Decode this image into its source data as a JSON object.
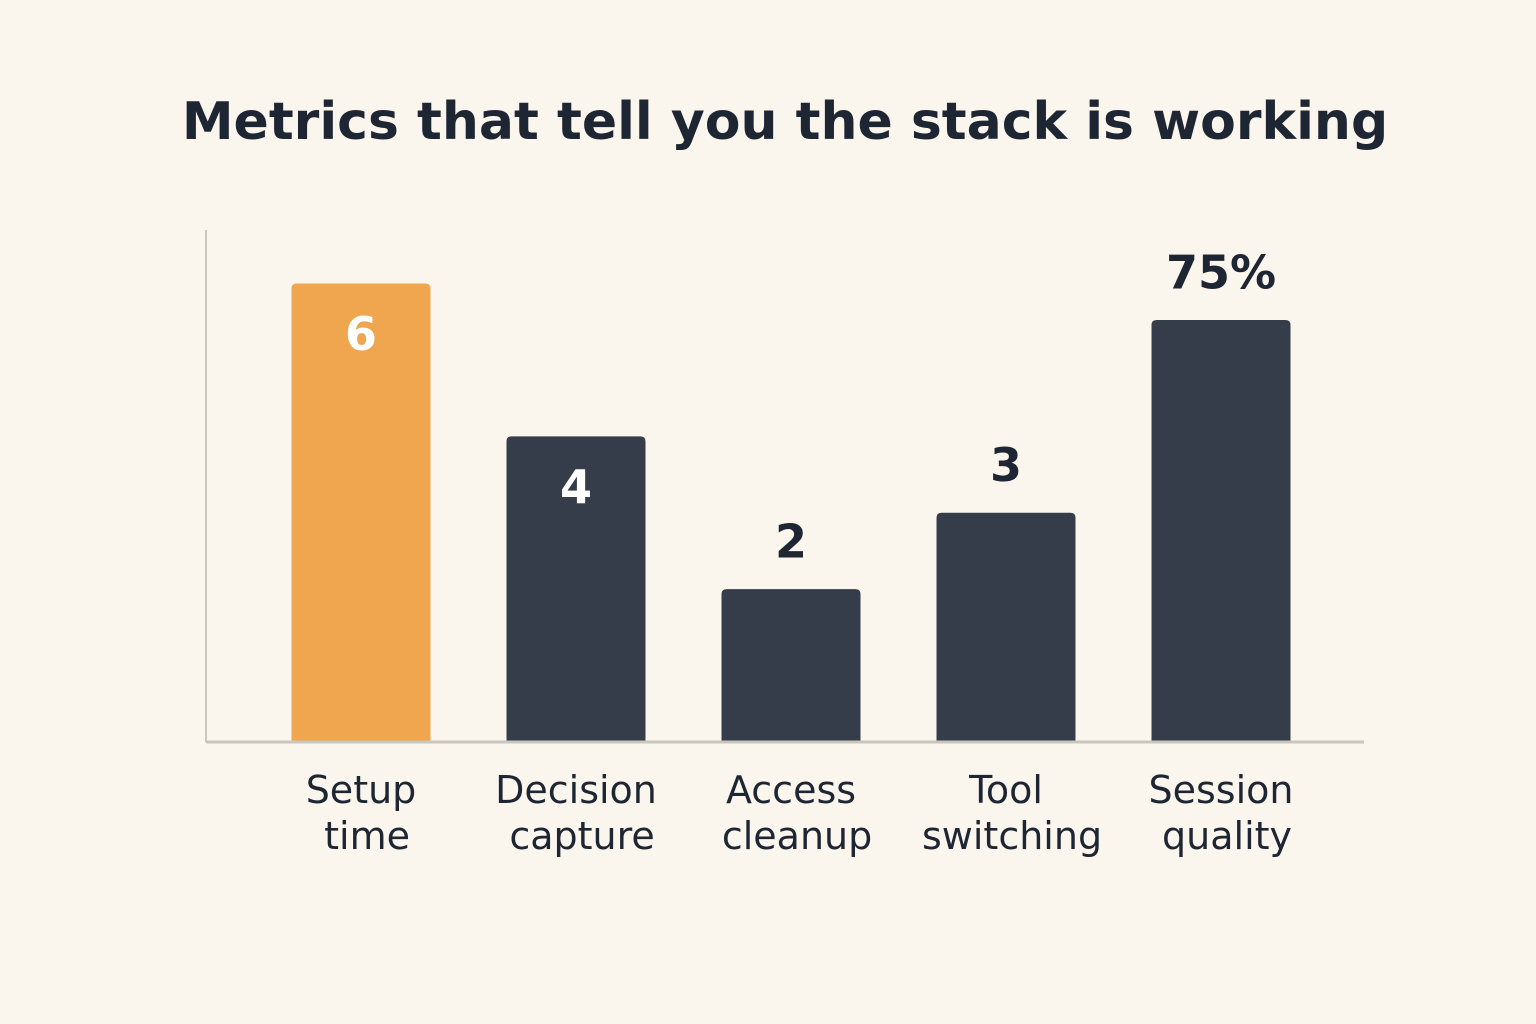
{
  "chart_data": {
    "type": "bar",
    "title": "Metrics that tell you the stack is working",
    "categories": [
      "Setup time",
      "Decision capture",
      "Access cleanup",
      "Tool switching",
      "Session quality"
    ],
    "series": [
      {
        "values": [
          6,
          4,
          2,
          3,
          null
        ],
        "colors": [
          "#efa64f",
          "#363d4a",
          "#363d4a",
          "#363d4a",
          null
        ]
      },
      {
        "values": [
          null,
          null,
          null,
          null,
          75
        ],
        "value_labels": [
          null,
          null,
          null,
          null,
          "75%"
        ],
        "color": "#363d4a",
        "axis": "y2"
      }
    ],
    "ylim": [
      0,
      6.7
    ],
    "y2lim": [
      0,
      91
    ],
    "grid": false
  }
}
